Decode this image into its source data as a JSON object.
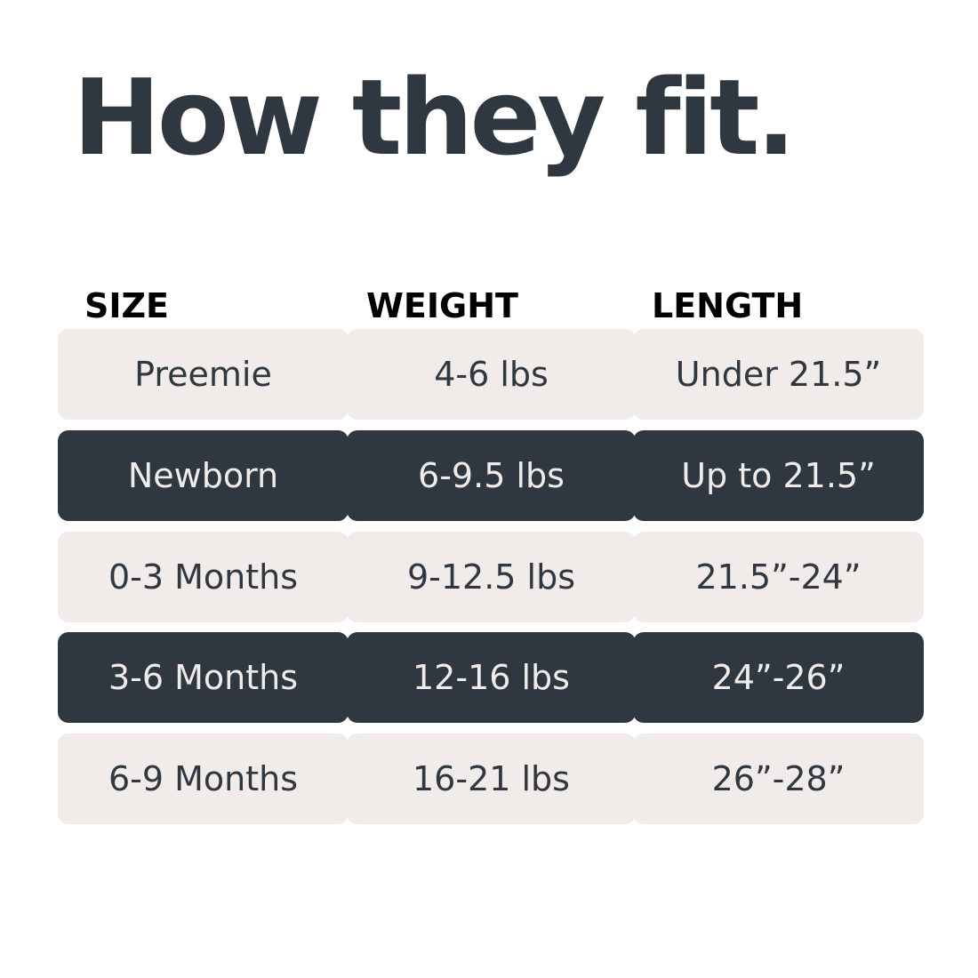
{
  "title": "How they fit.",
  "headers": [
    "SIZE",
    "WEIGHT",
    "LENGTH"
  ],
  "colors": {
    "dark": "#2f3740",
    "light": "#f1ece9"
  },
  "rows": [
    {
      "size": "Preemie",
      "weight": "4-6 lbs",
      "length": "Under 21.5”",
      "style": "light"
    },
    {
      "size": "Newborn",
      "weight": "6-9.5 lbs",
      "length": "Up to 21.5”",
      "style": "dark"
    },
    {
      "size": "0-3 Months",
      "weight": "9-12.5 lbs",
      "length": "21.5”-24”",
      "style": "light"
    },
    {
      "size": "3-6 Months",
      "weight": "12-16 lbs",
      "length": "24”-26”",
      "style": "dark"
    },
    {
      "size": "6-9 Months",
      "weight": "16-21 lbs",
      "length": "26”-28”",
      "style": "light"
    }
  ]
}
